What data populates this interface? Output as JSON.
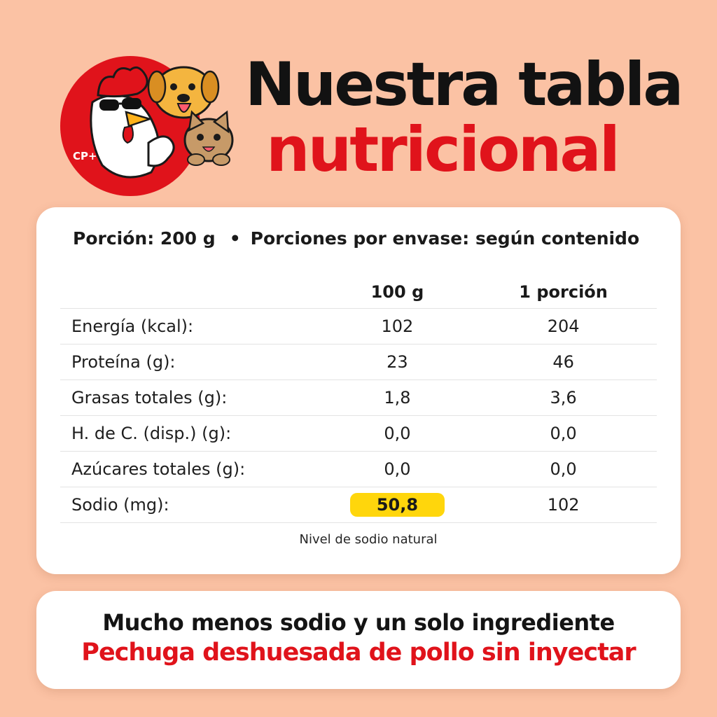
{
  "header": {
    "logo_text": "CP+",
    "title_line1": "Nuestra tabla",
    "title_line2": "nutricional"
  },
  "nutrition": {
    "serving_size": "Porción: 200 g",
    "separator": "•",
    "servings_per_container": "Porciones por envase: según contenido",
    "columns": [
      "",
      "100 g",
      "1 porción"
    ],
    "rows": [
      {
        "label": "Energía (kcal):",
        "per_100g": "102",
        "per_portion": "204"
      },
      {
        "label": "Proteína (g):",
        "per_100g": "23",
        "per_portion": "46"
      },
      {
        "label": "Grasas totales (g):",
        "per_100g": "1,8",
        "per_portion": "3,6"
      },
      {
        "label": "H. de C. (disp.) (g):",
        "per_100g": "0,0",
        "per_portion": "0,0"
      },
      {
        "label": "Azúcares totales (g):",
        "per_100g": "0,0",
        "per_portion": "0,0"
      },
      {
        "label": "Sodio (mg):",
        "per_100g": "50,8",
        "per_portion": "102"
      }
    ],
    "note": "Nivel de sodio natural"
  },
  "banner": {
    "line1": "Mucho menos sodio y un solo ingrediente",
    "line2": "Pechuga deshuesada de pollo sin inyectar"
  },
  "colors": {
    "background": "#fbc2a4",
    "brand_red": "#e0131b",
    "highlight_yellow": "#ffd60c",
    "card": "#ffffff",
    "text_dark": "#141414"
  },
  "icons": {
    "logo": "rooster-dog-cat-mascot-logo"
  }
}
